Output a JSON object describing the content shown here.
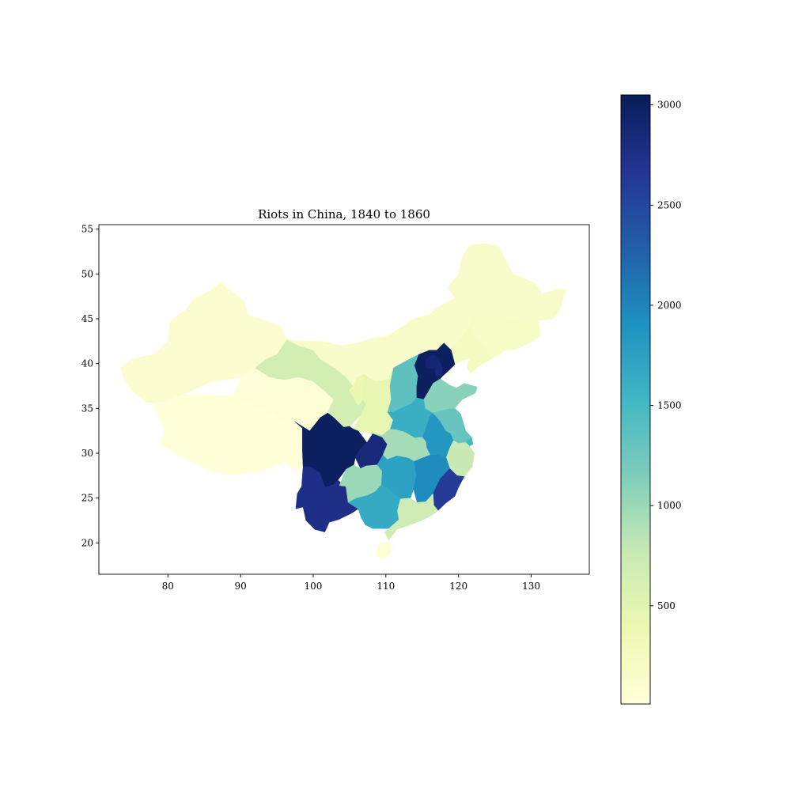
{
  "chart_data": {
    "type": "choropleth",
    "title": "Riots in China, 1840 to 1860",
    "xlim": [
      70.5,
      138
    ],
    "ylim": [
      16.5,
      55.5
    ],
    "x_ticks": [
      80,
      90,
      100,
      110,
      120,
      130
    ],
    "y_ticks": [
      20,
      25,
      30,
      35,
      40,
      45,
      50,
      55
    ],
    "colorbar": {
      "colormap": "YlGnBu",
      "min": 10,
      "max": 3050,
      "ticks": [
        500,
        1000,
        1500,
        2000,
        2500,
        3000
      ]
    },
    "regions": [
      {
        "name": "Xinjiang",
        "value": 100
      },
      {
        "name": "Tibet",
        "value": 20
      },
      {
        "name": "Qinghai",
        "value": 40
      },
      {
        "name": "Gansu",
        "value": 650
      },
      {
        "name": "Inner Mongolia",
        "value": 150
      },
      {
        "name": "Ningxia",
        "value": 400
      },
      {
        "name": "Heilongjiang",
        "value": 150
      },
      {
        "name": "Jilin",
        "value": 200
      },
      {
        "name": "Liaoning",
        "value": 250
      },
      {
        "name": "Hebei",
        "value": 3000
      },
      {
        "name": "Beijing",
        "value": 2900
      },
      {
        "name": "Tianjin",
        "value": 2850
      },
      {
        "name": "Shanxi",
        "value": 1350
      },
      {
        "name": "Shaanxi",
        "value": 450
      },
      {
        "name": "Shandong",
        "value": 1100
      },
      {
        "name": "Henan",
        "value": 1600
      },
      {
        "name": "Jiangsu",
        "value": 1300
      },
      {
        "name": "Anhui",
        "value": 1850
      },
      {
        "name": "Shanghai",
        "value": 1500
      },
      {
        "name": "Sichuan",
        "value": 3000
      },
      {
        "name": "Chongqing",
        "value": 2850
      },
      {
        "name": "Hubei",
        "value": 950
      },
      {
        "name": "Zhejiang",
        "value": 750
      },
      {
        "name": "Yunnan",
        "value": 2750
      },
      {
        "name": "Guizhou",
        "value": 1000
      },
      {
        "name": "Hunan",
        "value": 1750
      },
      {
        "name": "Jiangxi",
        "value": 1950
      },
      {
        "name": "Fujian",
        "value": 2600
      },
      {
        "name": "Guangxi",
        "value": 1650
      },
      {
        "name": "Guangdong",
        "value": 700
      },
      {
        "name": "Hainan",
        "value": 50
      }
    ]
  }
}
